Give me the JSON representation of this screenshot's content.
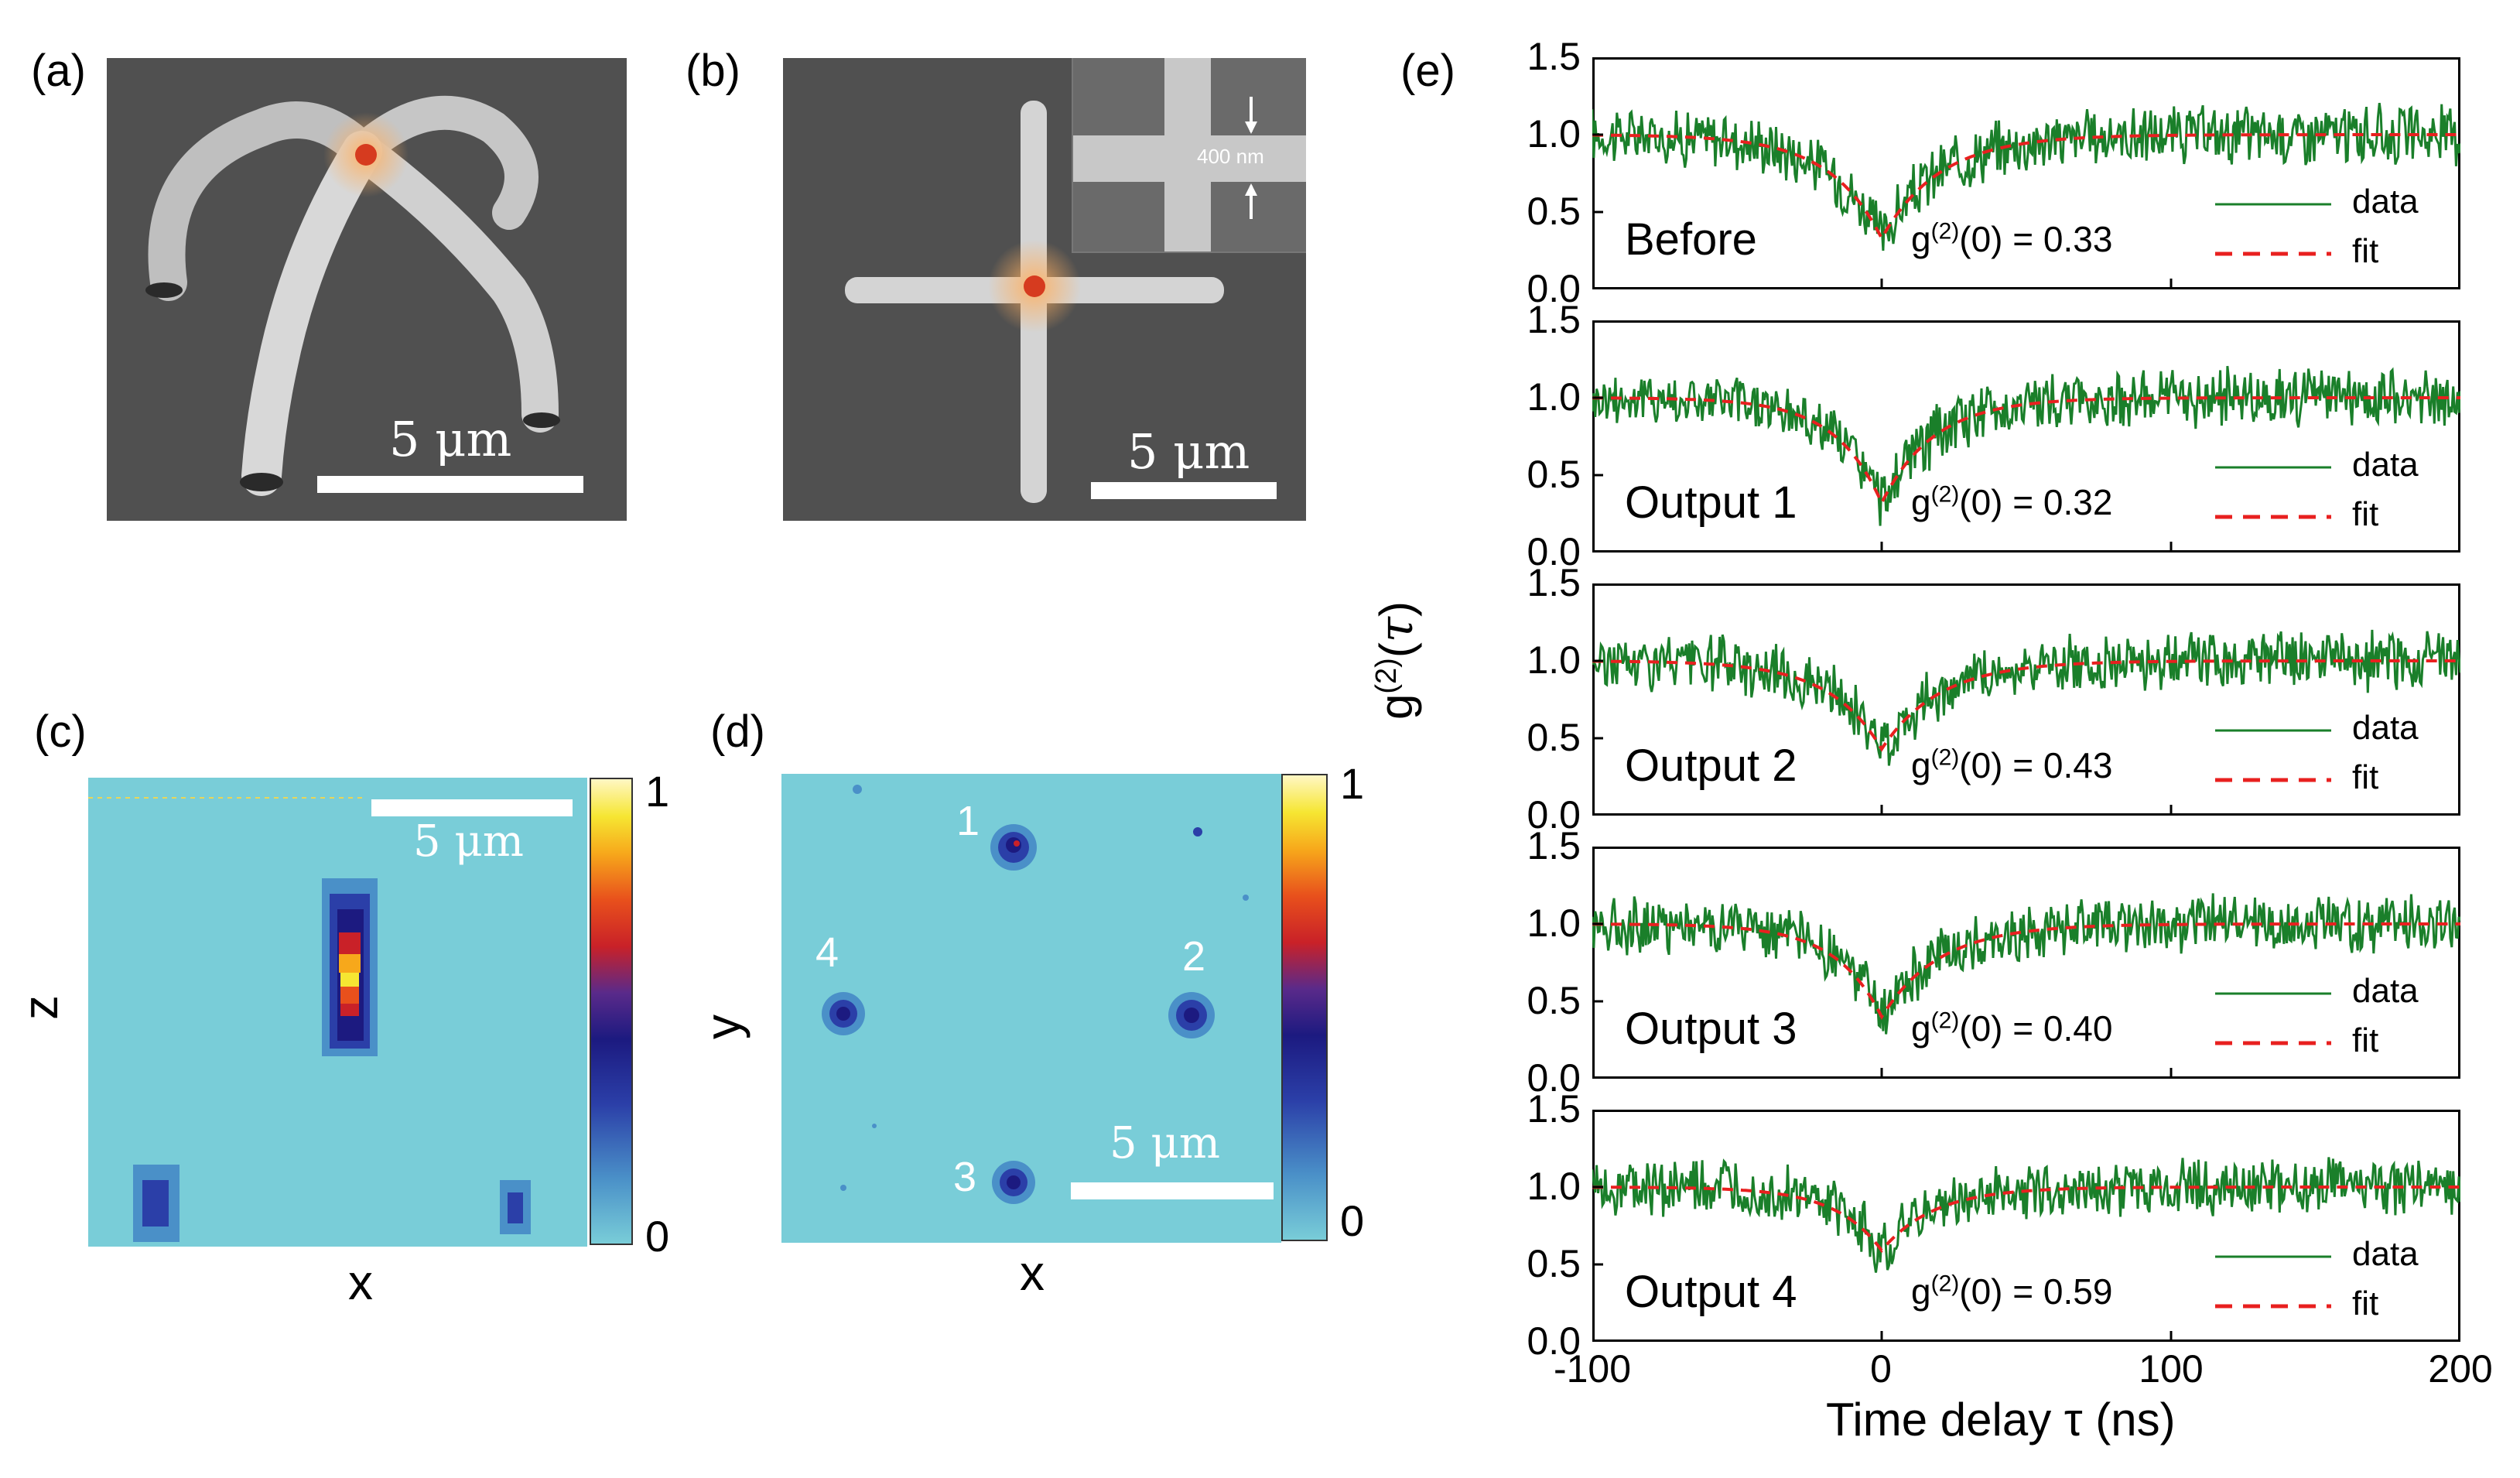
{
  "panels": {
    "a": {
      "label": "(a)",
      "scale": "5 μm"
    },
    "b": {
      "label": "(b)",
      "scale": "5 μm",
      "inset": "400 nm"
    },
    "c": {
      "label": "(c)",
      "scale": "5 μm",
      "xlabel": "x",
      "ylabel": "z",
      "cbar_max": "1",
      "cbar_min": "0"
    },
    "d": {
      "label": "(d)",
      "scale": "5 μm",
      "xlabel": "x",
      "ylabel": "y",
      "cbar_max": "1",
      "cbar_min": "0",
      "spots": [
        "1",
        "2",
        "3",
        "4"
      ]
    },
    "e": {
      "label": "(e)"
    }
  },
  "chart_data": {
    "type": "line",
    "title": "",
    "xlabel": "Time delay τ (ns)",
    "ylabel": "g(2)(τ)",
    "xlim": [
      -100,
      200
    ],
    "ylim": [
      0,
      1.5
    ],
    "xticks": [
      "-100",
      "0",
      "100",
      "200"
    ],
    "yticks": [
      "0.0",
      "0.5",
      "1.0",
      "1.5"
    ],
    "legend": [
      "data",
      "fit"
    ],
    "colors": {
      "data": "#1a7f2a",
      "fit": "#e8201f"
    },
    "subplots": [
      {
        "name": "Before",
        "g2_zero": 0.33,
        "annotation": "g(2)(0) = 0.33",
        "fit": {
          "baseline": 1.0,
          "tau_neg": 18,
          "tau_pos": 20
        }
      },
      {
        "name": "Output 1",
        "g2_zero": 0.32,
        "annotation": "g(2)(0) = 0.32",
        "fit": {
          "baseline": 1.0,
          "tau_neg": 16,
          "tau_pos": 18
        }
      },
      {
        "name": "Output 2",
        "g2_zero": 0.43,
        "annotation": "g(2)(0) = 0.43",
        "fit": {
          "baseline": 1.0,
          "tau_neg": 18,
          "tau_pos": 20
        }
      },
      {
        "name": "Output 3",
        "g2_zero": 0.4,
        "annotation": "g(2)(0) = 0.40",
        "fit": {
          "baseline": 1.0,
          "tau_neg": 16,
          "tau_pos": 20
        }
      },
      {
        "name": "Output 4",
        "g2_zero": 0.59,
        "annotation": "g(2)(0) = 0.59",
        "fit": {
          "baseline": 1.0,
          "tau_neg": 16,
          "tau_pos": 18
        }
      }
    ]
  }
}
